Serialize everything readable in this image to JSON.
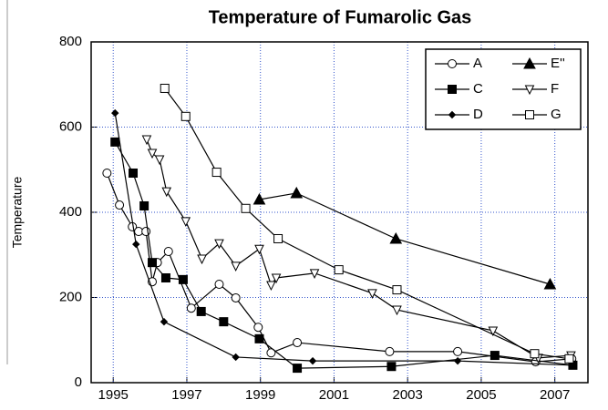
{
  "chart_data": {
    "type": "line",
    "title": "Temperature of Fumarolic Gas",
    "ylabel": "Temperature",
    "xlim": [
      1994.4,
      2007.9
    ],
    "ylim": [
      0,
      800
    ],
    "xticks": [
      1995,
      1997,
      1999,
      2001,
      2003,
      2005,
      2007
    ],
    "yticks": [
      0,
      200,
      400,
      600,
      800
    ],
    "grid": true,
    "legend": "upper right",
    "series": [
      {
        "name": "A",
        "color": "#000000",
        "marker": "circle-open",
        "x": [
          1994.83,
          1995.17,
          1995.52,
          1995.69,
          1995.89,
          1996.06,
          1996.2,
          1996.5,
          1997.12,
          1997.88,
          1998.33,
          1998.94,
          1999.29,
          2000.0,
          2002.51,
          2004.36,
          2006.48,
          2007.46
        ],
        "values": [
          492,
          417,
          366,
          355,
          355,
          237,
          282,
          308,
          175,
          231,
          199,
          130,
          70,
          94,
          73,
          73,
          49,
          56
        ]
      },
      {
        "name": "C",
        "color": "#000000",
        "marker": "square-filled",
        "x": [
          1995.05,
          1995.54,
          1995.84,
          1996.06,
          1996.43,
          1996.9,
          1997.39,
          1998.0,
          1998.97,
          2000.0,
          2002.56,
          2005.37,
          2007.49
        ],
        "values": [
          565,
          492,
          415,
          282,
          246,
          242,
          167,
          143,
          103,
          34,
          38,
          64,
          41
        ]
      },
      {
        "name": "D",
        "color": "#000000",
        "marker": "diamond-filled",
        "x": [
          1995.05,
          1995.62,
          1996.38,
          1998.33,
          2000.42,
          2004.36,
          2007.46
        ],
        "values": [
          633,
          325,
          143,
          60,
          51,
          51,
          41
        ]
      },
      {
        "name": "E''",
        "color": "#000000",
        "marker": "triangle-filled",
        "x": [
          1998.97,
          1999.98,
          2002.68,
          2006.87
        ],
        "values": [
          430,
          445,
          338,
          231
        ]
      },
      {
        "name": "F",
        "color": "#000000",
        "marker": "triangle-down-open",
        "x": [
          1995.91,
          1996.06,
          1996.26,
          1996.45,
          1996.97,
          1997.41,
          1997.88,
          1998.33,
          1998.97,
          1999.29,
          1999.43,
          2000.47,
          2002.04,
          2002.71,
          2005.32,
          2006.55,
          2007.44
        ],
        "values": [
          571,
          539,
          524,
          449,
          379,
          291,
          327,
          274,
          314,
          229,
          246,
          257,
          210,
          171,
          122,
          58,
          64
        ]
      },
      {
        "name": "G",
        "color": "#000000",
        "marker": "square-open",
        "x": [
          1996.4,
          1996.97,
          1997.81,
          1998.6,
          1999.48,
          2001.13,
          2002.71,
          2006.45,
          2007.39
        ],
        "values": [
          691,
          625,
          494,
          409,
          338,
          265,
          218,
          68,
          56
        ]
      }
    ]
  }
}
